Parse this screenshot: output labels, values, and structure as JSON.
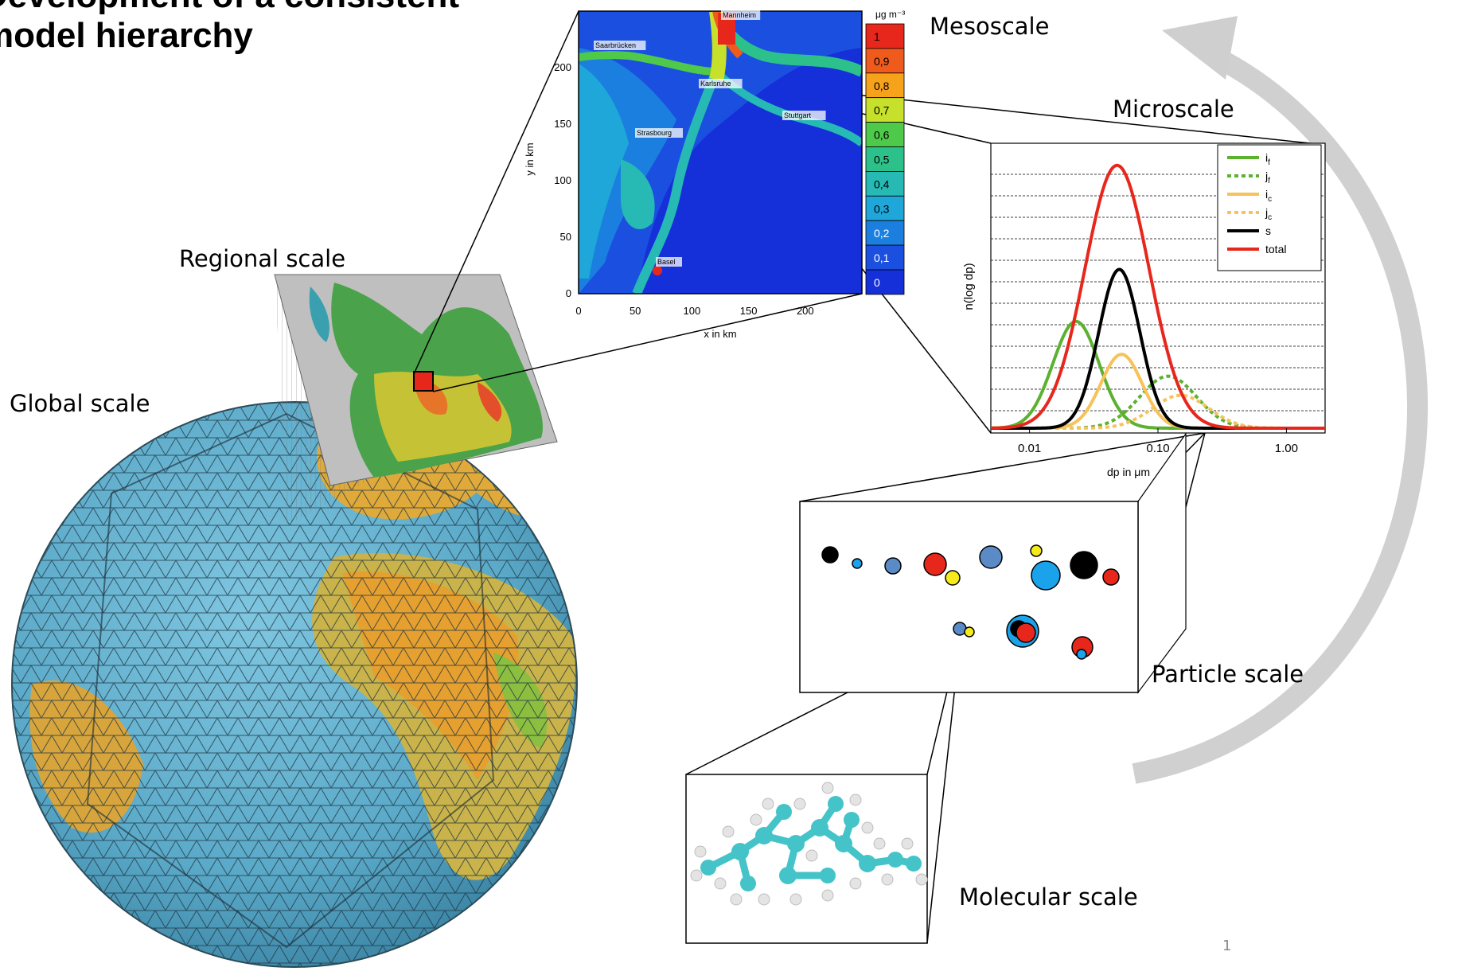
{
  "slide": {
    "title_line1": "Development of a consistent",
    "title_line2": "model hierarchy",
    "page_number": "1"
  },
  "scale_labels": {
    "global": "Global scale",
    "regional": "Regional scale",
    "mesoscale": "Mesoscale",
    "microscale": "Microscale",
    "particle": "Particle scale",
    "molecular": "Molecular scale"
  },
  "mesoscale_map": {
    "ylabel": "y in km",
    "xlabel": "x in km",
    "x_ticks": [
      "0",
      "50",
      "100",
      "150",
      "200"
    ],
    "y_ticks": [
      "0",
      "50",
      "100",
      "150",
      "200"
    ],
    "cities": [
      "Mannheim",
      "Saarbrücken",
      "Karlsruhe",
      "Stuttgart",
      "Strasbourg",
      "Basel"
    ],
    "colorbar_unit": "μg m⁻³",
    "colorbar": [
      {
        "label": "1",
        "color": "#e8271c"
      },
      {
        "label": "0,9",
        "color": "#ef5b1c"
      },
      {
        "label": "0,8",
        "color": "#f7a21b"
      },
      {
        "label": "0,7",
        "color": "#c6e02b"
      },
      {
        "label": "0,6",
        "color": "#4ec94a"
      },
      {
        "label": "0,5",
        "color": "#2cc18a"
      },
      {
        "label": "0,4",
        "color": "#27b9b4"
      },
      {
        "label": "0,3",
        "color": "#1ea7d8"
      },
      {
        "label": "0,2",
        "color": "#1b7fe0"
      },
      {
        "label": "0,1",
        "color": "#1b4fe0"
      },
      {
        "label": "0",
        "color": "#1530d8"
      }
    ]
  },
  "chart_data": {
    "type": "line",
    "title": "",
    "xlabel": "dp in μm",
    "ylabel": "n(log dp)",
    "x_scale": "log",
    "xlim": [
      0.005,
      2.0
    ],
    "x_ticks": [
      "0.01",
      "0.10",
      "1.00"
    ],
    "ylim": [
      0,
      1.0
    ],
    "legend_position": "top-right",
    "series": [
      {
        "name": "if",
        "color": "#5cb130",
        "dash": "solid",
        "mode": 0.023,
        "sigma": 0.18,
        "peak": 0.39
      },
      {
        "name": "jf",
        "color": "#5cb130",
        "dash": "dotted",
        "mode": 0.12,
        "sigma": 0.22,
        "peak": 0.19
      },
      {
        "name": "ic",
        "color": "#f7c25a",
        "dash": "solid",
        "mode": 0.052,
        "sigma": 0.16,
        "peak": 0.27
      },
      {
        "name": "jc",
        "color": "#f7c25a",
        "dash": "dotted",
        "mode": 0.15,
        "sigma": 0.22,
        "peak": 0.12
      },
      {
        "name": "s",
        "color": "#000000",
        "dash": "solid",
        "mode": 0.05,
        "sigma": 0.16,
        "peak": 0.58
      },
      {
        "name": "total",
        "color": "#e8271c",
        "dash": "solid",
        "mode": 0.048,
        "sigma": 0.25,
        "peak": 0.96
      }
    ]
  }
}
